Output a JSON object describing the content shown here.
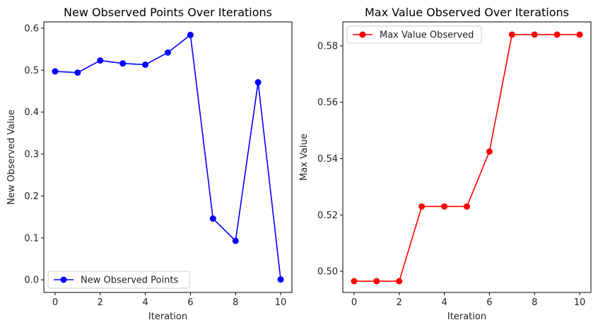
{
  "chart_data": [
    {
      "type": "line",
      "title": "New Observed Points Over Iterations",
      "xlabel": "Iteration",
      "ylabel": "New Observed Value",
      "x": [
        0,
        1,
        2,
        3,
        4,
        5,
        6,
        7,
        8,
        9,
        10
      ],
      "series": [
        {
          "name": "New Observed Points",
          "values": [
            0.497,
            0.494,
            0.523,
            0.516,
            0.513,
            0.542,
            0.584,
            0.146,
            0.093,
            0.471,
            0.001
          ],
          "color": "#0000ff",
          "marker": "circle"
        }
      ],
      "xlim": [
        -0.5,
        10.5
      ],
      "ylim": [
        -0.03,
        0.615
      ],
      "xticks": [
        0,
        2,
        4,
        6,
        8,
        10
      ],
      "xtick_labels": [
        "0",
        "2",
        "4",
        "6",
        "8",
        "10"
      ],
      "yticks": [
        0.0,
        0.1,
        0.2,
        0.3,
        0.4,
        0.5,
        0.6
      ],
      "ytick_labels": [
        "0.0",
        "0.1",
        "0.2",
        "0.3",
        "0.4",
        "0.5",
        "0.6"
      ],
      "legend_position": "lower-left",
      "grid": false
    },
    {
      "type": "line",
      "title": "Max Value Observed Over Iterations",
      "xlabel": "Iteration",
      "ylabel": "Max Value",
      "x": [
        0,
        1,
        2,
        3,
        4,
        5,
        6,
        7,
        8,
        9,
        10
      ],
      "series": [
        {
          "name": "Max Value Observed",
          "values": [
            0.4965,
            0.4965,
            0.4965,
            0.523,
            0.523,
            0.523,
            0.5425,
            0.584,
            0.584,
            0.584,
            0.584
          ],
          "color": "#ff0000",
          "marker": "circle"
        }
      ],
      "xlim": [
        -0.5,
        10.5
      ],
      "ylim": [
        0.4925,
        0.5885
      ],
      "xticks": [
        0,
        2,
        4,
        6,
        8,
        10
      ],
      "xtick_labels": [
        "0",
        "2",
        "4",
        "6",
        "8",
        "10"
      ],
      "yticks": [
        0.5,
        0.52,
        0.54,
        0.56,
        0.58
      ],
      "ytick_labels": [
        "0.50",
        "0.52",
        "0.54",
        "0.56",
        "0.58"
      ],
      "legend_position": "upper-left",
      "grid": false
    }
  ]
}
